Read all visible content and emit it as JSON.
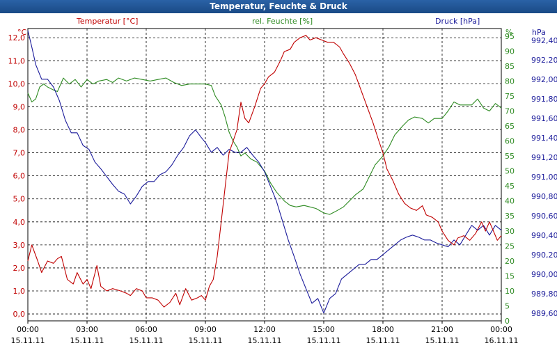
{
  "window": {
    "title": "Temperatur, Feuchte & Druck"
  },
  "colors": {
    "temperature": "#c00000",
    "humidity": "#2e8b22",
    "pressure": "#1a1a9a",
    "titlebar": "#1f5596"
  },
  "chart_data": {
    "type": "line",
    "title": "Temperatur, Feuchte & Druck",
    "legend": {
      "temperature": "Temperatur [°C]",
      "humidity": "rel. Feuchte [%]",
      "pressure": "Druck [hPa]"
    },
    "units": {
      "temperature": "°C",
      "humidity": "%",
      "pressure": "hPa"
    },
    "x_ticks": [
      {
        "time": "00:00",
        "date": "15.11.11"
      },
      {
        "time": "03:00",
        "date": "15.11.11"
      },
      {
        "time": "06:00",
        "date": "15.11.11"
      },
      {
        "time": "09:00",
        "date": "15.11.11"
      },
      {
        "time": "12:00",
        "date": "15.11.11"
      },
      {
        "time": "15:00",
        "date": "15.11.11"
      },
      {
        "time": "18:00",
        "date": "15.11.11"
      },
      {
        "time": "21:00",
        "date": "15.11.11"
      },
      {
        "time": "00:00",
        "date": "16.11.11"
      }
    ],
    "xlim": [
      0,
      24
    ],
    "temp_ylim": [
      -0.3,
      12.4
    ],
    "hum_ylim": [
      0,
      97.5
    ],
    "press_ylim": [
      989.52,
      992.52
    ],
    "temp_ticks": [
      "0,0",
      "1,0",
      "2,0",
      "3,0",
      "4,0",
      "5,0",
      "6,0",
      "7,0",
      "8,0",
      "9,0",
      "10,0",
      "11,0",
      "12,0"
    ],
    "hum_ticks": [
      "0",
      "5",
      "10",
      "15",
      "20",
      "25",
      "30",
      "35",
      "40",
      "45",
      "50",
      "55",
      "60",
      "65",
      "70",
      "75",
      "80",
      "85",
      "90",
      "95"
    ],
    "press_ticks": [
      "989,60",
      "989,80",
      "990,00",
      "990,20",
      "990,40",
      "990,60",
      "990,80",
      "991,00",
      "991,20",
      "991,40",
      "991,60",
      "991,80",
      "992,00",
      "992,20",
      "992,40"
    ],
    "series": [
      {
        "name": "Temperatur [°C]",
        "axis": "temperature",
        "points": [
          [
            0,
            2.3
          ],
          [
            0.2,
            3.0
          ],
          [
            0.5,
            2.3
          ],
          [
            0.7,
            1.8
          ],
          [
            1.0,
            2.3
          ],
          [
            1.3,
            2.2
          ],
          [
            1.5,
            2.4
          ],
          [
            1.7,
            2.5
          ],
          [
            2.0,
            1.5
          ],
          [
            2.3,
            1.3
          ],
          [
            2.5,
            1.8
          ],
          [
            2.8,
            1.3
          ],
          [
            3.0,
            1.5
          ],
          [
            3.2,
            1.1
          ],
          [
            3.5,
            2.1
          ],
          [
            3.7,
            1.2
          ],
          [
            4.0,
            1.0
          ],
          [
            4.3,
            1.1
          ],
          [
            4.7,
            1.0
          ],
          [
            5.0,
            0.9
          ],
          [
            5.2,
            0.8
          ],
          [
            5.5,
            1.1
          ],
          [
            5.8,
            1.0
          ],
          [
            6.0,
            0.7
          ],
          [
            6.3,
            0.7
          ],
          [
            6.6,
            0.6
          ],
          [
            6.9,
            0.3
          ],
          [
            7.2,
            0.5
          ],
          [
            7.5,
            0.9
          ],
          [
            7.7,
            0.4
          ],
          [
            8.0,
            1.1
          ],
          [
            8.3,
            0.6
          ],
          [
            8.6,
            0.7
          ],
          [
            8.8,
            0.8
          ],
          [
            9.0,
            0.6
          ],
          [
            9.2,
            1.2
          ],
          [
            9.4,
            1.5
          ],
          [
            9.6,
            2.5
          ],
          [
            9.8,
            4.0
          ],
          [
            10.0,
            5.5
          ],
          [
            10.2,
            7.0
          ],
          [
            10.4,
            7.5
          ],
          [
            10.6,
            8.0
          ],
          [
            10.8,
            9.2
          ],
          [
            11.0,
            8.5
          ],
          [
            11.2,
            8.3
          ],
          [
            11.5,
            9.0
          ],
          [
            11.8,
            9.8
          ],
          [
            12.0,
            10.0
          ],
          [
            12.2,
            10.3
          ],
          [
            12.5,
            10.5
          ],
          [
            12.8,
            11.0
          ],
          [
            13.0,
            11.4
          ],
          [
            13.3,
            11.5
          ],
          [
            13.5,
            11.8
          ],
          [
            13.8,
            12.0
          ],
          [
            14.1,
            12.1
          ],
          [
            14.3,
            11.9
          ],
          [
            14.6,
            12.0
          ],
          [
            14.9,
            11.9
          ],
          [
            15.2,
            11.8
          ],
          [
            15.5,
            11.8
          ],
          [
            15.8,
            11.6
          ],
          [
            16.0,
            11.3
          ],
          [
            16.3,
            10.9
          ],
          [
            16.6,
            10.4
          ],
          [
            16.9,
            9.7
          ],
          [
            17.2,
            9.0
          ],
          [
            17.5,
            8.3
          ],
          [
            17.8,
            7.5
          ],
          [
            18.0,
            7.0
          ],
          [
            18.2,
            6.3
          ],
          [
            18.5,
            5.8
          ],
          [
            18.8,
            5.2
          ],
          [
            19.1,
            4.8
          ],
          [
            19.4,
            4.6
          ],
          [
            19.7,
            4.5
          ],
          [
            20.0,
            4.7
          ],
          [
            20.2,
            4.3
          ],
          [
            20.5,
            4.2
          ],
          [
            20.8,
            4.0
          ],
          [
            21.0,
            3.6
          ],
          [
            21.3,
            3.2
          ],
          [
            21.6,
            3.0
          ],
          [
            21.8,
            3.3
          ],
          [
            22.1,
            3.4
          ],
          [
            22.4,
            3.2
          ],
          [
            22.7,
            3.5
          ],
          [
            23.0,
            4.0
          ],
          [
            23.2,
            3.6
          ],
          [
            23.4,
            4.0
          ],
          [
            23.6,
            3.6
          ],
          [
            23.8,
            3.2
          ],
          [
            24.0,
            3.4
          ]
        ]
      },
      {
        "name": "rel. Feuchte [%]",
        "axis": "humidity",
        "points": [
          [
            0,
            76.0
          ],
          [
            0.2,
            73.0
          ],
          [
            0.4,
            74.0
          ],
          [
            0.6,
            78.0
          ],
          [
            0.8,
            79.0
          ],
          [
            1.0,
            78.0
          ],
          [
            1.3,
            77.0
          ],
          [
            1.5,
            76.5
          ],
          [
            1.8,
            81.0
          ],
          [
            2.1,
            79.0
          ],
          [
            2.4,
            80.5
          ],
          [
            2.7,
            78.0
          ],
          [
            3.0,
            80.5
          ],
          [
            3.3,
            79.0
          ],
          [
            3.6,
            80.0
          ],
          [
            4.0,
            80.5
          ],
          [
            4.3,
            79.5
          ],
          [
            4.6,
            81.0
          ],
          [
            5.0,
            80.0
          ],
          [
            5.4,
            81.0
          ],
          [
            5.8,
            80.5
          ],
          [
            6.2,
            80.0
          ],
          [
            6.6,
            80.5
          ],
          [
            7.0,
            81.0
          ],
          [
            7.4,
            79.5
          ],
          [
            7.8,
            78.5
          ],
          [
            8.2,
            79.0
          ],
          [
            8.6,
            79.0
          ],
          [
            9.0,
            79.0
          ],
          [
            9.3,
            78.5
          ],
          [
            9.5,
            75.0
          ],
          [
            9.8,
            72.0
          ],
          [
            10.0,
            68.0
          ],
          [
            10.2,
            63.0
          ],
          [
            10.4,
            60.0
          ],
          [
            10.6,
            58.0
          ],
          [
            10.8,
            55.0
          ],
          [
            11.0,
            56.0
          ],
          [
            11.3,
            54.0
          ],
          [
            11.6,
            53.0
          ],
          [
            12.0,
            50.0
          ],
          [
            12.3,
            46.0
          ],
          [
            12.6,
            43.0
          ],
          [
            13.0,
            40.0
          ],
          [
            13.3,
            38.5
          ],
          [
            13.6,
            38.0
          ],
          [
            14.0,
            38.5
          ],
          [
            14.3,
            38.0
          ],
          [
            14.6,
            37.5
          ],
          [
            15.0,
            36.0
          ],
          [
            15.3,
            35.5
          ],
          [
            15.6,
            36.5
          ],
          [
            16.0,
            38.0
          ],
          [
            16.3,
            40.0
          ],
          [
            16.6,
            42.0
          ],
          [
            17.0,
            44.0
          ],
          [
            17.3,
            48.0
          ],
          [
            17.6,
            52.0
          ],
          [
            18.0,
            55.0
          ],
          [
            18.3,
            58.0
          ],
          [
            18.6,
            62.0
          ],
          [
            19.0,
            65.0
          ],
          [
            19.3,
            67.0
          ],
          [
            19.6,
            68.0
          ],
          [
            20.0,
            67.5
          ],
          [
            20.3,
            66.0
          ],
          [
            20.6,
            67.5
          ],
          [
            21.0,
            67.5
          ],
          [
            21.3,
            70.0
          ],
          [
            21.6,
            73.0
          ],
          [
            21.9,
            72.0
          ],
          [
            22.2,
            72.0
          ],
          [
            22.5,
            72.0
          ],
          [
            22.8,
            74.0
          ],
          [
            23.1,
            71.0
          ],
          [
            23.4,
            70.0
          ],
          [
            23.7,
            72.5
          ],
          [
            24.0,
            71.0
          ]
        ]
      },
      {
        "name": "Druck [hPa]",
        "axis": "pressure",
        "points": [
          [
            0,
            992.5
          ],
          [
            0.2,
            992.33
          ],
          [
            0.4,
            992.15
          ],
          [
            0.7,
            992.0
          ],
          [
            1.0,
            992.0
          ],
          [
            1.3,
            991.92
          ],
          [
            1.6,
            991.78
          ],
          [
            1.9,
            991.58
          ],
          [
            2.2,
            991.45
          ],
          [
            2.5,
            991.45
          ],
          [
            2.8,
            991.32
          ],
          [
            3.1,
            991.28
          ],
          [
            3.4,
            991.15
          ],
          [
            3.7,
            991.08
          ],
          [
            4.0,
            991.0
          ],
          [
            4.3,
            990.92
          ],
          [
            4.6,
            990.85
          ],
          [
            4.9,
            990.82
          ],
          [
            5.2,
            990.72
          ],
          [
            5.5,
            990.8
          ],
          [
            5.8,
            990.9
          ],
          [
            6.1,
            990.95
          ],
          [
            6.4,
            990.95
          ],
          [
            6.7,
            991.02
          ],
          [
            7.0,
            991.05
          ],
          [
            7.3,
            991.12
          ],
          [
            7.6,
            991.22
          ],
          [
            7.9,
            991.3
          ],
          [
            8.2,
            991.42
          ],
          [
            8.5,
            991.48
          ],
          [
            8.8,
            991.4
          ],
          [
            9.0,
            991.35
          ],
          [
            9.3,
            991.25
          ],
          [
            9.6,
            991.3
          ],
          [
            9.9,
            991.22
          ],
          [
            10.2,
            991.28
          ],
          [
            10.5,
            991.25
          ],
          [
            10.8,
            991.25
          ],
          [
            11.1,
            991.3
          ],
          [
            11.4,
            991.22
          ],
          [
            11.7,
            991.15
          ],
          [
            12.0,
            991.05
          ],
          [
            12.3,
            990.9
          ],
          [
            12.6,
            990.75
          ],
          [
            12.9,
            990.55
          ],
          [
            13.2,
            990.35
          ],
          [
            13.5,
            990.18
          ],
          [
            13.8,
            990.0
          ],
          [
            14.1,
            989.85
          ],
          [
            14.4,
            989.7
          ],
          [
            14.7,
            989.75
          ],
          [
            15.0,
            989.6
          ],
          [
            15.3,
            989.75
          ],
          [
            15.6,
            989.8
          ],
          [
            15.9,
            989.95
          ],
          [
            16.2,
            990.0
          ],
          [
            16.5,
            990.05
          ],
          [
            16.8,
            990.1
          ],
          [
            17.1,
            990.1
          ],
          [
            17.4,
            990.15
          ],
          [
            17.7,
            990.15
          ],
          [
            18.0,
            990.2
          ],
          [
            18.3,
            990.25
          ],
          [
            18.6,
            990.3
          ],
          [
            18.9,
            990.35
          ],
          [
            19.2,
            990.38
          ],
          [
            19.5,
            990.4
          ],
          [
            19.8,
            990.38
          ],
          [
            20.1,
            990.35
          ],
          [
            20.4,
            990.35
          ],
          [
            20.7,
            990.32
          ],
          [
            21.0,
            990.3
          ],
          [
            21.3,
            990.28
          ],
          [
            21.6,
            990.35
          ],
          [
            21.9,
            990.3
          ],
          [
            22.2,
            990.4
          ],
          [
            22.5,
            990.5
          ],
          [
            22.8,
            990.45
          ],
          [
            23.1,
            990.5
          ],
          [
            23.4,
            990.4
          ],
          [
            23.7,
            990.5
          ],
          [
            24.0,
            990.45
          ]
        ]
      }
    ]
  }
}
